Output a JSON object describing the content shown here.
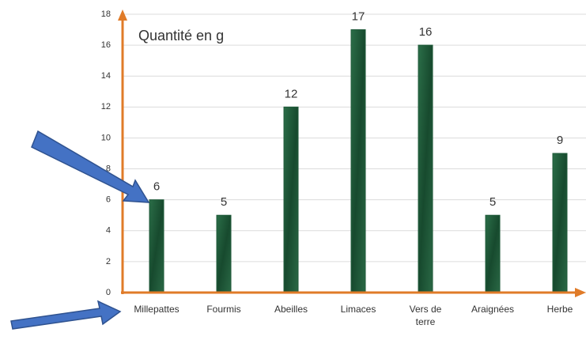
{
  "chart_data": {
    "type": "bar",
    "title": "Quantité en g",
    "categories": [
      "Millepattes",
      "Fourmis",
      "Abeilles",
      "Limaces",
      "Vers de terre",
      "Araignées",
      "Herbe"
    ],
    "values": [
      6,
      5,
      12,
      17,
      16,
      5,
      9
    ],
    "color": "#1f5a3a",
    "ylim": [
      0,
      18
    ],
    "yticks": [
      0,
      2,
      4,
      6,
      8,
      10,
      12,
      14,
      16,
      18
    ],
    "grid": true
  }
}
